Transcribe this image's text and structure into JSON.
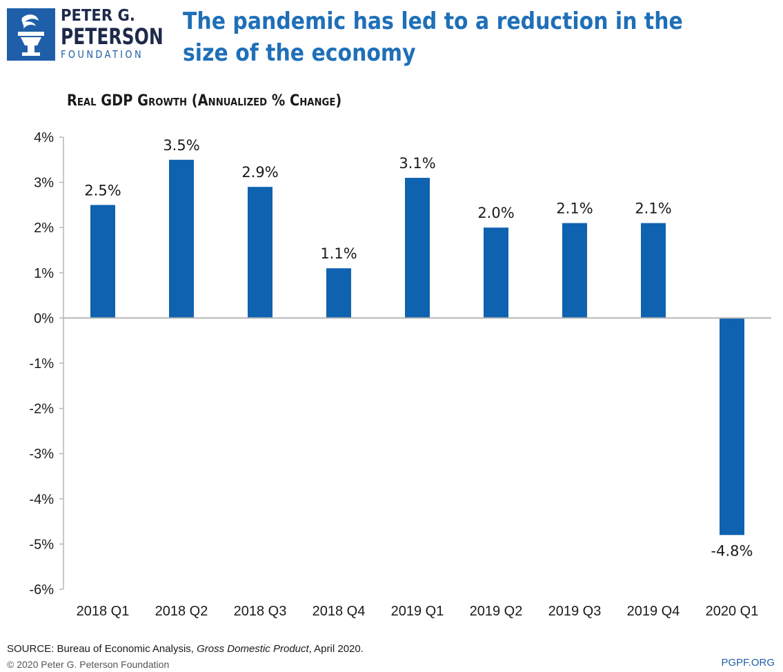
{
  "header": {
    "logo_line1": "PETER G.",
    "logo_line2": "PETERSON",
    "logo_line3": "FOUNDATION",
    "headline": "The pandemic has led to a reduction in the size of the economy"
  },
  "colors": {
    "bar": "#0f62b0",
    "accent": "#1f6fb8",
    "axis": "#b5b5b5"
  },
  "chart_data": {
    "type": "bar",
    "title": "Real GDP Growth (Annualized % Change)",
    "xlabel": "",
    "ylabel": "",
    "categories": [
      "2018 Q1",
      "2018 Q2",
      "2018 Q3",
      "2018 Q4",
      "2019 Q1",
      "2019 Q2",
      "2019 Q3",
      "2019 Q4",
      "2020 Q1"
    ],
    "values": [
      2.5,
      3.5,
      2.9,
      1.1,
      3.1,
      2.0,
      2.1,
      2.1,
      -4.8
    ],
    "value_labels": [
      "2.5%",
      "3.5%",
      "2.9%",
      "1.1%",
      "3.1%",
      "2.0%",
      "2.1%",
      "2.1%",
      "-4.8%"
    ],
    "ylim": [
      -6,
      4
    ],
    "yticks": [
      4,
      3,
      2,
      1,
      0,
      -1,
      -2,
      -3,
      -4,
      -5,
      -6
    ],
    "ytick_labels": [
      "4%",
      "3%",
      "2%",
      "1%",
      "0%",
      "-1%",
      "-2%",
      "-3%",
      "-4%",
      "-5%",
      "-6%"
    ],
    "grid": false,
    "legend": "none"
  },
  "footer": {
    "source_prefix": "SOURCE: Bureau of Economic Analysis, ",
    "source_italic": "Gross Domestic Product",
    "source_suffix": ", April 2020.",
    "copyright": "© 2020 Peter G. Peterson Foundation",
    "url": "PGPF.ORG"
  }
}
